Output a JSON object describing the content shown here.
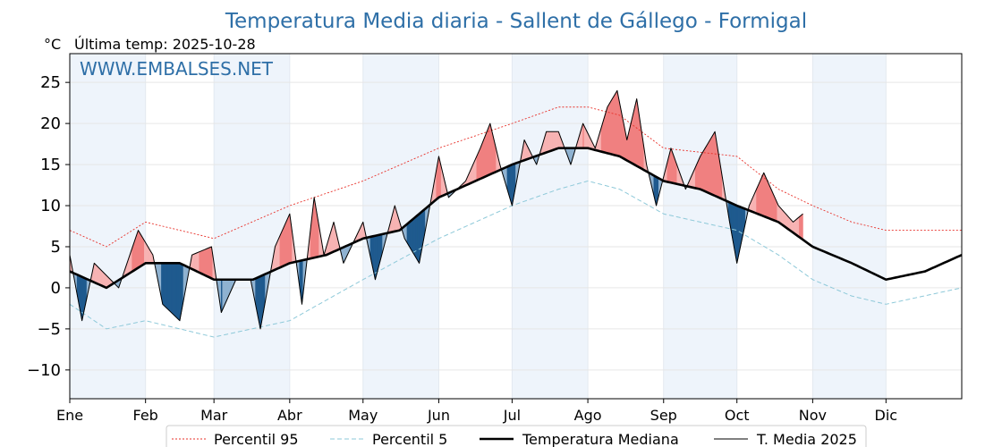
{
  "chart_data": {
    "type": "line",
    "title": "Temperatura Media diaria - Sallent de Gállego - Formigal",
    "unit_label": "°C",
    "last_temp_label": "Última temp: 2025-10-28",
    "watermark": "WWW.EMBALSES.NET",
    "ylim": [
      -13.5,
      28.5
    ],
    "yticks": [
      25,
      20,
      15,
      10,
      5,
      0,
      -5,
      -10
    ],
    "ytick_labels": [
      "25",
      "20",
      "15",
      "10",
      "5",
      "0",
      "−5",
      "−10"
    ],
    "xlim": [
      0,
      365
    ],
    "month_starts": [
      0,
      31,
      59,
      90,
      120,
      151,
      181,
      212,
      243,
      273,
      304,
      334
    ],
    "month_labels": [
      "Ene",
      "Feb",
      "Mar",
      "Abr",
      "May",
      "Jun",
      "Jul",
      "Ago",
      "Sep",
      "Oct",
      "Nov",
      "Dic"
    ],
    "colors": {
      "p95": "#e8312a",
      "p5": "#8ec9d9",
      "median": "#000000",
      "media2025": "#000000",
      "above": "#f08080",
      "above_light": "#f7b3b3",
      "below": "#1f5a8e",
      "below_light": "#8fb2d1",
      "band": "#eef4fb",
      "title": "#2e6fa7"
    },
    "series": [
      {
        "name": "Percentil 95",
        "style": "dotted",
        "knots": [
          [
            0,
            7
          ],
          [
            15,
            5
          ],
          [
            31,
            8
          ],
          [
            59,
            6
          ],
          [
            90,
            10
          ],
          [
            120,
            13
          ],
          [
            151,
            17
          ],
          [
            181,
            20
          ],
          [
            200,
            22
          ],
          [
            212,
            22
          ],
          [
            225,
            21
          ],
          [
            243,
            17
          ],
          [
            273,
            16
          ],
          [
            290,
            12
          ],
          [
            304,
            10
          ],
          [
            320,
            8
          ],
          [
            334,
            7
          ],
          [
            365,
            7
          ]
        ]
      },
      {
        "name": "Percentil 5",
        "style": "dashed",
        "knots": [
          [
            0,
            -2
          ],
          [
            15,
            -5
          ],
          [
            31,
            -4
          ],
          [
            59,
            -6
          ],
          [
            90,
            -4
          ],
          [
            120,
            1
          ],
          [
            151,
            6
          ],
          [
            181,
            10
          ],
          [
            200,
            12
          ],
          [
            212,
            13
          ],
          [
            225,
            12
          ],
          [
            243,
            9
          ],
          [
            273,
            7
          ],
          [
            290,
            4
          ],
          [
            304,
            1
          ],
          [
            320,
            -1
          ],
          [
            334,
            -2
          ],
          [
            365,
            0
          ]
        ]
      },
      {
        "name": "Temperatura Mediana",
        "style": "solid-thick",
        "knots": [
          [
            0,
            2
          ],
          [
            15,
            0
          ],
          [
            31,
            3
          ],
          [
            45,
            3
          ],
          [
            59,
            1
          ],
          [
            75,
            1
          ],
          [
            90,
            3
          ],
          [
            105,
            4
          ],
          [
            120,
            6
          ],
          [
            135,
            7
          ],
          [
            151,
            11
          ],
          [
            166,
            13
          ],
          [
            181,
            15
          ],
          [
            200,
            17
          ],
          [
            212,
            17
          ],
          [
            225,
            16
          ],
          [
            243,
            13
          ],
          [
            258,
            12
          ],
          [
            273,
            10
          ],
          [
            290,
            8
          ],
          [
            304,
            5
          ],
          [
            320,
            3
          ],
          [
            334,
            1
          ],
          [
            350,
            2
          ],
          [
            365,
            4
          ]
        ]
      },
      {
        "name": "T. Media 2025",
        "style": "solid-thin",
        "end_day": 300,
        "knots": [
          [
            0,
            4
          ],
          [
            5,
            -4
          ],
          [
            10,
            3
          ],
          [
            20,
            0
          ],
          [
            28,
            7
          ],
          [
            34,
            4
          ],
          [
            38,
            -2
          ],
          [
            45,
            -4
          ],
          [
            50,
            4
          ],
          [
            58,
            5
          ],
          [
            62,
            -3
          ],
          [
            68,
            1
          ],
          [
            74,
            1
          ],
          [
            78,
            -5
          ],
          [
            84,
            5
          ],
          [
            90,
            9
          ],
          [
            95,
            -2
          ],
          [
            100,
            11
          ],
          [
            104,
            4
          ],
          [
            108,
            8
          ],
          [
            112,
            3
          ],
          [
            120,
            8
          ],
          [
            125,
            1
          ],
          [
            133,
            10
          ],
          [
            137,
            6
          ],
          [
            143,
            3
          ],
          [
            148,
            11
          ],
          [
            151,
            16
          ],
          [
            155,
            11
          ],
          [
            162,
            13
          ],
          [
            168,
            17
          ],
          [
            172,
            20
          ],
          [
            176,
            15
          ],
          [
            181,
            10
          ],
          [
            186,
            18
          ],
          [
            191,
            15
          ],
          [
            195,
            19
          ],
          [
            200,
            19
          ],
          [
            205,
            15
          ],
          [
            210,
            20
          ],
          [
            215,
            17
          ],
          [
            220,
            22
          ],
          [
            224,
            24
          ],
          [
            228,
            18
          ],
          [
            232,
            23
          ],
          [
            236,
            15
          ],
          [
            240,
            10
          ],
          [
            246,
            17
          ],
          [
            252,
            12
          ],
          [
            258,
            16
          ],
          [
            264,
            19
          ],
          [
            270,
            8
          ],
          [
            273,
            3
          ],
          [
            278,
            10
          ],
          [
            284,
            14
          ],
          [
            290,
            10
          ],
          [
            296,
            8
          ],
          [
            300,
            9
          ]
        ]
      }
    ],
    "legend": [
      "Percentil 95",
      "Percentil 5",
      "Temperatura Mediana",
      "T. Media 2025"
    ]
  }
}
